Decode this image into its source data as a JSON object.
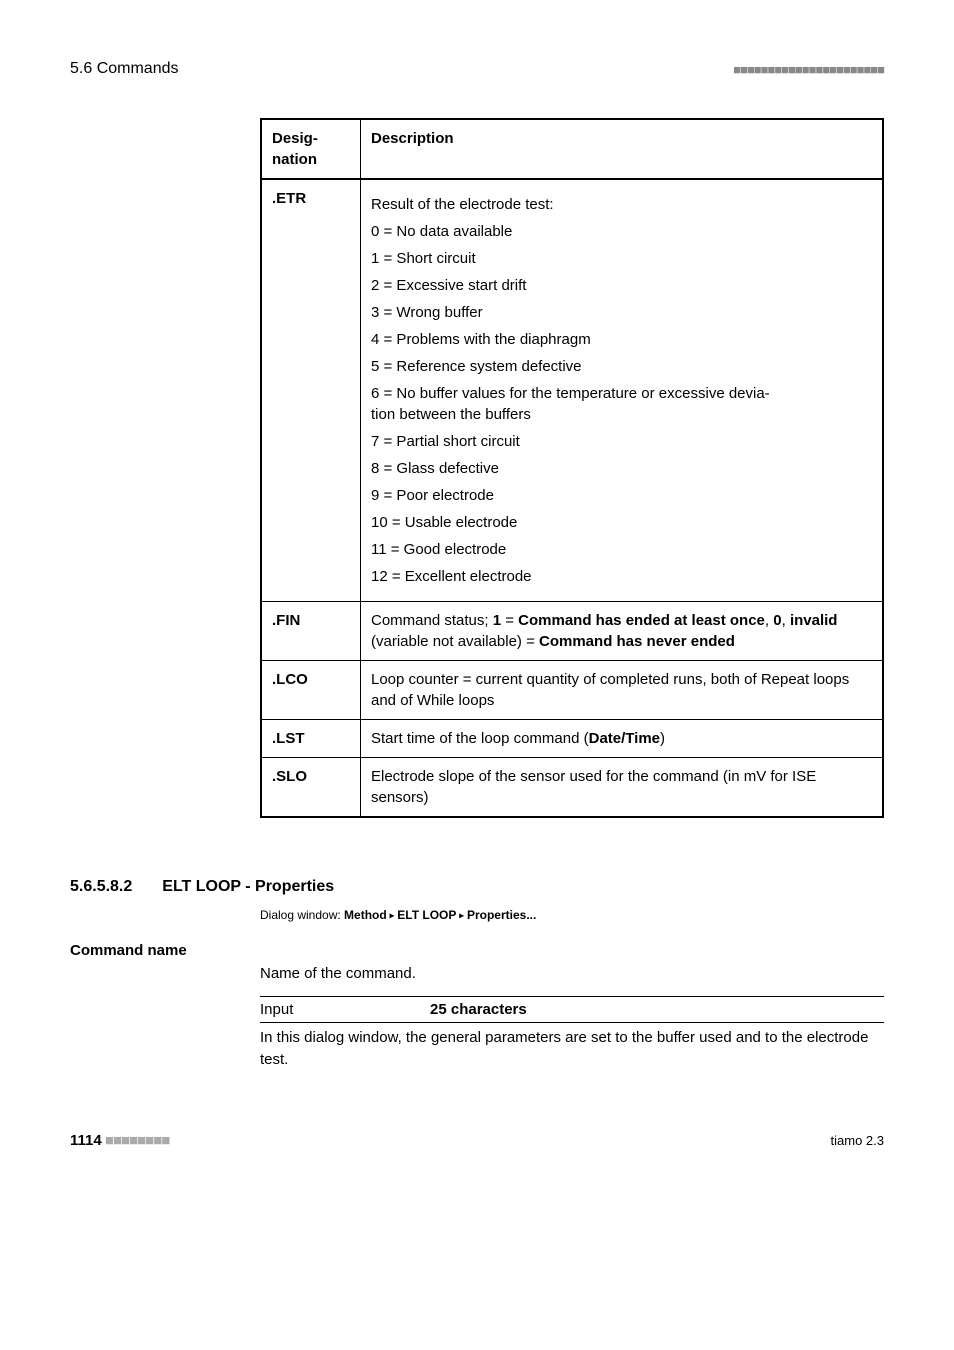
{
  "header": {
    "section": "5.6 Commands",
    "dots": "■■■■■■■■■■■■■■■■■■■■■■"
  },
  "table": {
    "headers": {
      "desig": "Desig-\nnation",
      "desc": "Description"
    },
    "rows": [
      {
        "desig": ".ETR",
        "desc_lines": [
          "Result of the electrode test:",
          "0 = No data available",
          "1 = Short circuit",
          "2 = Excessive start drift",
          "3 = Wrong buffer",
          "4 = Problems with the diaphragm",
          "5 = Reference system defective",
          "6 = No buffer values for the temperature or excessive devia-\ntion between the buffers",
          "7 = Partial short circuit",
          "8 = Glass defective",
          "9 = Poor electrode",
          "10 = Usable electrode",
          "11 = Good electrode",
          "12 = Excellent electrode"
        ]
      },
      {
        "desig": ".FIN",
        "desc_rich": {
          "pre1": "Command status; ",
          "b1": "1",
          "mid1": " = ",
          "b2": "Command has ended at least once",
          "mid2": ", ",
          "b3": "0",
          "mid3": ", ",
          "b4": "invalid",
          "mid4": " (variable not available) = ",
          "b5": "Command has never ended"
        }
      },
      {
        "desig": ".LCO",
        "desc_plain": "Loop counter = current quantity of completed runs, both of Repeat loops and of While loops"
      },
      {
        "desig": ".LST",
        "desc_rich2": {
          "pre": "Start time of the loop command (",
          "b": "Date/Time",
          "post": ")"
        }
      },
      {
        "desig": ".SLO",
        "desc_plain": "Electrode slope of the sensor used for the command (in mV for ISE sensors)"
      }
    ]
  },
  "section": {
    "num": "5.6.5.8.2",
    "title": "ELT LOOP - Properties"
  },
  "breadcrumb": {
    "label": "Dialog window: ",
    "b1": "Method",
    "sep": " ▸ ",
    "b2": "ELT LOOP",
    "b3": "Properties..."
  },
  "command_name_label": "Command name",
  "body_text": "Name of the command.",
  "input": {
    "label": "Input",
    "value": "25 characters"
  },
  "closing": "In this dialog window, the general parameters are set to the buffer used and to the electrode test.",
  "footer": {
    "page": "1114",
    "dots": " ■■■■■■■■",
    "right": "tiamo 2.3"
  }
}
